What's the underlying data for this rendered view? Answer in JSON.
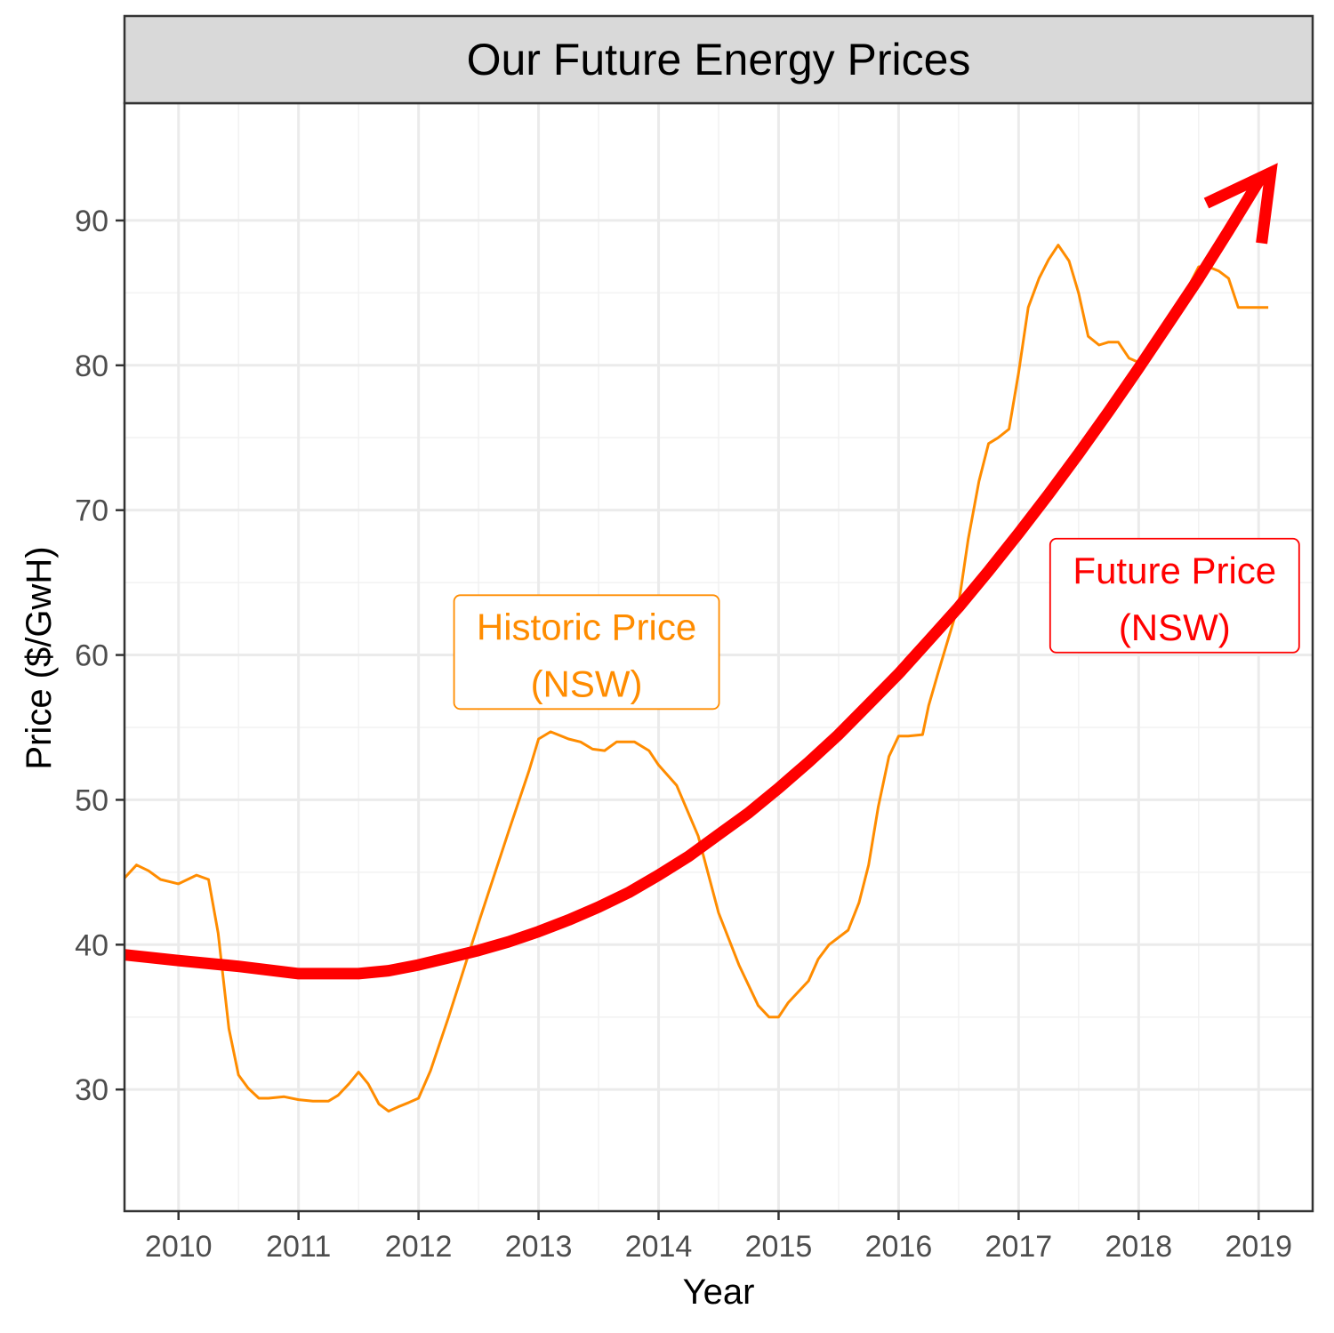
{
  "chart_data": {
    "type": "line",
    "title": "Our Future Energy Prices",
    "xlabel": "Year",
    "ylabel": "Price ($/GwH)",
    "xlim": [
      2009.55,
      2019.45
    ],
    "ylim": [
      21.6,
      98.1
    ],
    "x_ticks": [
      2010,
      2011,
      2012,
      2013,
      2014,
      2015,
      2016,
      2017,
      2018,
      2019
    ],
    "x_tick_labels": [
      "2010",
      "2011",
      "2012",
      "2013",
      "2014",
      "2015",
      "2016",
      "2017",
      "2018",
      "2019"
    ],
    "y_ticks": [
      30,
      40,
      50,
      60,
      70,
      80,
      90
    ],
    "y_tick_labels": [
      "30",
      "40",
      "50",
      "60",
      "70",
      "80",
      "90"
    ],
    "grid": true,
    "legend": "none",
    "series": [
      {
        "color": "#ff8c00",
        "style": "thin",
        "x": [
          2009.55,
          2009.65,
          2009.75,
          2009.85,
          2010.0,
          2010.15,
          2010.25,
          2010.33,
          2010.42,
          2010.5,
          2010.58,
          2010.67,
          2010.75,
          2010.88,
          2011.0,
          2011.12,
          2011.25,
          2011.33,
          2011.42,
          2011.5,
          2011.58,
          2011.67,
          2011.75,
          2011.83,
          2011.92,
          2012.0,
          2012.1,
          2012.25,
          2012.5,
          2012.75,
          2012.92,
          2013.0,
          2013.1,
          2013.25,
          2013.35,
          2013.45,
          2013.55,
          2013.65,
          2013.8,
          2013.92,
          2014.0,
          2014.15,
          2014.33,
          2014.5,
          2014.67,
          2014.83,
          2014.92,
          2015.0,
          2015.08,
          2015.25,
          2015.33,
          2015.42,
          2015.58,
          2015.67,
          2015.75,
          2015.83,
          2015.92,
          2016.0,
          2016.08,
          2016.2,
          2016.25,
          2016.33,
          2016.5,
          2016.58,
          2016.67,
          2016.75,
          2016.83,
          2016.92,
          2017.0,
          2017.08,
          2017.17,
          2017.25,
          2017.33,
          2017.42,
          2017.5,
          2017.58,
          2017.67,
          2017.75,
          2017.83,
          2017.92,
          2018.0,
          2018.08,
          2018.17,
          2018.25,
          2018.33,
          2018.42,
          2018.5,
          2018.58,
          2018.67,
          2018.75,
          2018.83,
          2018.92,
          2019.0,
          2019.08
        ],
        "y": [
          44.6,
          45.5,
          45.1,
          44.5,
          44.2,
          44.8,
          44.5,
          40.8,
          34.2,
          31.0,
          30.1,
          29.4,
          29.4,
          29.5,
          29.3,
          29.2,
          29.2,
          29.6,
          30.4,
          31.2,
          30.4,
          29.0,
          28.5,
          28.8,
          29.1,
          29.4,
          31.3,
          35.0,
          41.5,
          47.8,
          52.0,
          54.2,
          54.7,
          54.2,
          54.0,
          53.5,
          53.4,
          54.0,
          54.0,
          53.4,
          52.4,
          51.0,
          47.5,
          42.2,
          38.6,
          35.8,
          35.0,
          35.0,
          36.0,
          37.5,
          39.0,
          40.0,
          41.0,
          42.9,
          45.5,
          49.5,
          53.0,
          54.4,
          54.4,
          54.5,
          56.5,
          58.8,
          63.5,
          68.0,
          72.0,
          74.6,
          75.0,
          75.6,
          79.5,
          84.0,
          86.0,
          87.3,
          88.3,
          87.2,
          85.0,
          82.0,
          81.4,
          81.6,
          81.6,
          80.5,
          80.2,
          81.0,
          81.8,
          82.5,
          83.5,
          85.5,
          86.8,
          86.8,
          86.5,
          86.0,
          84.0,
          84.0,
          84.0,
          84.0
        ]
      },
      {
        "color": "#ff0000",
        "style": "thick-arrow",
        "x": [
          2009.55,
          2010.0,
          2010.5,
          2011.0,
          2011.25,
          2011.5,
          2011.75,
          2012.0,
          2012.25,
          2012.5,
          2012.75,
          2013.0,
          2013.25,
          2013.5,
          2013.75,
          2014.0,
          2014.25,
          2014.5,
          2014.75,
          2015.0,
          2015.25,
          2015.5,
          2015.75,
          2016.0,
          2016.25,
          2016.5,
          2016.75,
          2017.0,
          2017.25,
          2017.5,
          2017.75,
          2018.0,
          2018.25,
          2018.5,
          2018.75,
          2019.0,
          2019.1
        ],
        "y": [
          39.3,
          38.9,
          38.5,
          38.0,
          38.0,
          38.0,
          38.2,
          38.6,
          39.1,
          39.6,
          40.2,
          40.9,
          41.7,
          42.6,
          43.6,
          44.8,
          46.1,
          47.6,
          49.1,
          50.8,
          52.6,
          54.5,
          56.6,
          58.7,
          61.0,
          63.3,
          65.8,
          68.4,
          71.1,
          73.9,
          76.8,
          79.8,
          82.9,
          86.0,
          89.3,
          92.7,
          93.3
        ]
      }
    ],
    "annotations": [
      {
        "line1": "Historic Price",
        "line2": "(NSW)",
        "color": "#ff8c00",
        "x": 2013.4,
        "y": 60.2
      },
      {
        "line1": "Future Price",
        "line2": "(NSW)",
        "color": "#ff0000",
        "x": 2018.3,
        "y": 64.1
      }
    ]
  }
}
